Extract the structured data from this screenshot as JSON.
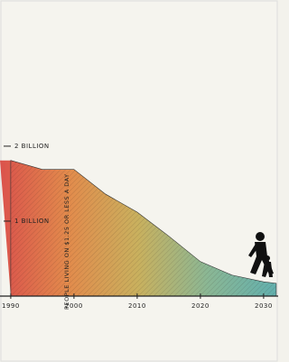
{
  "chart_data": {
    "type": "area",
    "annotation": "PEOPLE LIVING ON $1.25 OR LESS A DAY",
    "x": [
      1990,
      1995,
      2000,
      2005,
      2010,
      2015,
      2020,
      2025,
      2030,
      2032
    ],
    "values": [
      1.81,
      1.69,
      1.69,
      1.36,
      1.12,
      0.8,
      0.46,
      0.28,
      0.19,
      0.17
    ],
    "colors": [
      "#d8403a",
      "#e0803a",
      "#c4a94e",
      "#7fb08a",
      "#52a8a6"
    ],
    "xlim": [
      1988.3,
      2032.3
    ],
    "ylim": [
      0,
      3.95
    ],
    "xticks": [
      1990,
      2000,
      2010,
      2020,
      2030
    ],
    "yticks": [
      {
        "value": 1,
        "label": "1 BILLION"
      },
      {
        "value": 2,
        "label": "2 BILLION"
      }
    ]
  }
}
